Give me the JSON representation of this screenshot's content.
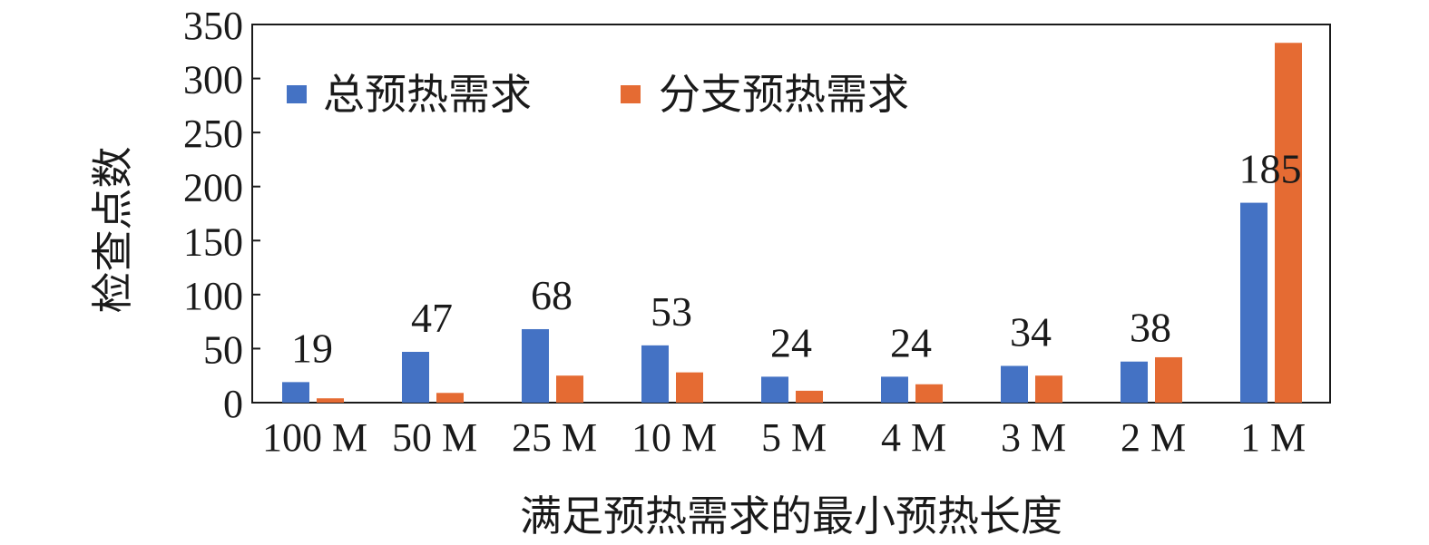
{
  "chart_data": {
    "type": "bar",
    "title": "",
    "xlabel": "满足预热需求的最小预热长度",
    "ylabel": "检查点数",
    "ylim": [
      0,
      350
    ],
    "yticks": [
      0,
      50,
      100,
      150,
      200,
      250,
      300,
      350
    ],
    "categories": [
      "100 M",
      "50 M",
      "25 M",
      "10 M",
      "5 M",
      "4 M",
      "3 M",
      "2 M",
      "1 M"
    ],
    "series": [
      {
        "name": "总预热需求",
        "color": "#4472C4",
        "values": [
          19,
          47,
          68,
          53,
          24,
          24,
          34,
          38,
          185
        ],
        "labels": [
          "19",
          "47",
          "68",
          "53",
          "24",
          "24",
          "34",
          "38",
          "185"
        ]
      },
      {
        "name": "分支预热需求",
        "color": "#E56B33",
        "values": [
          4,
          9,
          25,
          28,
          11,
          17,
          25,
          42,
          333
        ]
      }
    ],
    "grid": false,
    "legend_position": "top-left"
  }
}
